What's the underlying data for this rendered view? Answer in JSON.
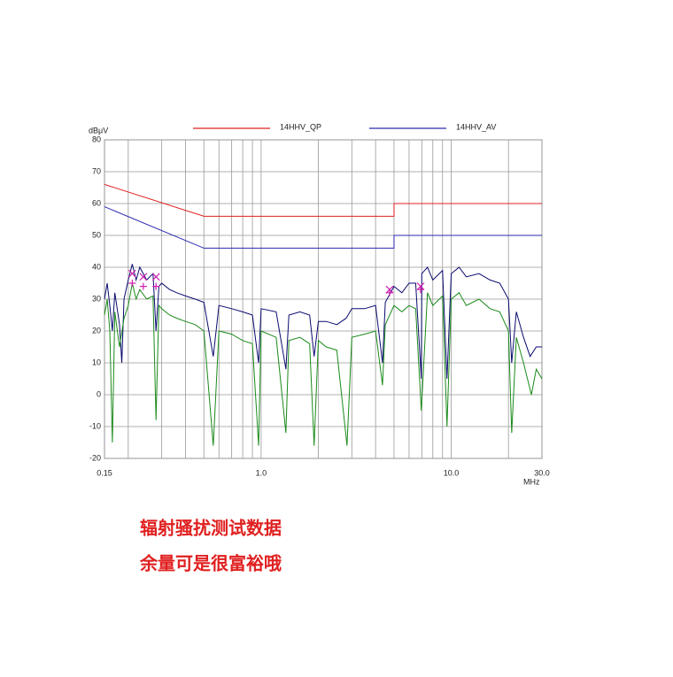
{
  "chart_data": {
    "type": "line",
    "x_scale": "log",
    "grid": true,
    "legend": "top",
    "y_label": "dBμV",
    "x_label": "MHz",
    "xlim": [
      0.15,
      30
    ],
    "ylim": [
      -20,
      80
    ],
    "xticks": [
      0.15,
      {
        "value": 1,
        "label": "1.0"
      },
      {
        "value": 10,
        "label": "10.0"
      },
      {
        "value": 30,
        "label": "30.0"
      }
    ],
    "xgrid": [
      0.2,
      0.3,
      0.4,
      0.5,
      0.6,
      0.7,
      0.8,
      0.9,
      2,
      3,
      4,
      5,
      6,
      7,
      8,
      9,
      20
    ],
    "yticks": [
      -20,
      -10,
      0,
      10,
      20,
      30,
      40,
      50,
      60,
      70,
      80
    ],
    "series": [
      {
        "name": "14HHV_QP",
        "color": "#e02020",
        "x": [
          0.15,
          0.5,
          5,
          5,
          30
        ],
        "values": [
          66,
          56,
          56,
          60,
          60
        ]
      },
      {
        "name": "14HHV_AV",
        "color": "#2a2ab0",
        "x": [
          0.15,
          0.5,
          5,
          5,
          30
        ],
        "values": [
          59,
          46,
          46,
          50,
          50
        ]
      },
      {
        "color": "#0a0a70",
        "x": [
          0.15,
          0.155,
          0.16,
          0.165,
          0.17,
          0.18,
          0.185,
          0.19,
          0.2,
          0.21,
          0.22,
          0.23,
          0.25,
          0.27,
          0.28,
          0.29,
          0.3,
          0.33,
          0.36,
          0.4,
          0.45,
          0.5,
          0.56,
          0.6,
          0.7,
          0.8,
          0.9,
          0.97,
          1.0,
          1.2,
          1.35,
          1.4,
          1.6,
          1.8,
          1.9,
          2.0,
          2.2,
          2.5,
          2.8,
          3.0,
          3.5,
          4.0,
          4.35,
          4.5,
          5.0,
          5.5,
          6.0,
          6.5,
          6.96,
          7.0,
          7.5,
          8,
          9,
          9.5,
          10,
          11,
          12,
          14,
          16,
          18,
          20,
          20.8,
          22,
          24,
          26,
          28,
          30
        ],
        "values": [
          30,
          35,
          28,
          20,
          32,
          22,
          10,
          30,
          36,
          41,
          36,
          40,
          36,
          38,
          20,
          34,
          35,
          33,
          32,
          31,
          30,
          29,
          12,
          28,
          27,
          26,
          25,
          10,
          27,
          26,
          8,
          25,
          26,
          25,
          12,
          23,
          23,
          22,
          24,
          27,
          27,
          28,
          10,
          29,
          34,
          32,
          35,
          35,
          5,
          38,
          40,
          36,
          39,
          5,
          38,
          40,
          37,
          38,
          36,
          35,
          30,
          10,
          26,
          18,
          12,
          15,
          15
        ]
      },
      {
        "color": "#1a8a1a",
        "x": [
          0.15,
          0.155,
          0.16,
          0.165,
          0.17,
          0.18,
          0.19,
          0.2,
          0.21,
          0.22,
          0.23,
          0.25,
          0.27,
          0.28,
          0.29,
          0.3,
          0.33,
          0.36,
          0.4,
          0.45,
          0.5,
          0.56,
          0.6,
          0.7,
          0.8,
          0.9,
          0.97,
          1.0,
          1.2,
          1.35,
          1.4,
          1.6,
          1.8,
          1.9,
          2.0,
          2.2,
          2.5,
          2.83,
          3.0,
          3.5,
          4.0,
          4.35,
          4.5,
          5.0,
          5.5,
          6.0,
          6.5,
          6.96,
          7.5,
          8,
          9,
          9.5,
          10,
          11,
          12,
          14,
          16,
          18,
          20,
          20.8,
          22,
          24,
          26.4,
          28,
          30
        ],
        "values": [
          25,
          30,
          20,
          -15,
          26,
          15,
          24,
          28,
          35,
          30,
          33,
          30,
          31,
          -8,
          28,
          27,
          25,
          24,
          23,
          22,
          20,
          -16,
          20,
          19,
          17,
          16,
          -16,
          20,
          18,
          -12,
          17,
          18,
          16,
          -16,
          17,
          15,
          14,
          -16,
          18,
          19,
          20,
          3,
          22,
          28,
          26,
          28,
          27,
          -5,
          32,
          28,
          31,
          -10,
          30,
          32,
          28,
          30,
          27,
          26,
          20,
          -12,
          18,
          10,
          0,
          8,
          5
        ]
      },
      {
        "marker": "x",
        "color": "#d020b0",
        "x": [
          0.21,
          0.24,
          0.28,
          4.74,
          6.9
        ],
        "values": [
          38,
          37,
          37,
          33,
          34
        ]
      },
      {
        "marker": "+",
        "color": "#d020b0",
        "x": [
          0.21,
          0.24,
          0.28,
          4.74,
          6.9
        ],
        "values": [
          35,
          34,
          34,
          32,
          33
        ]
      }
    ]
  },
  "notes": [
    "辐射骚扰测试数据",
    "余量可是很富裕哦"
  ]
}
